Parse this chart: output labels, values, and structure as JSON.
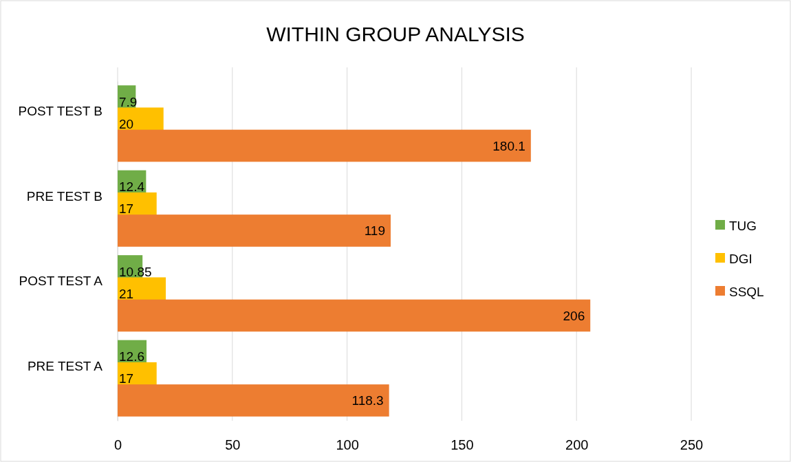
{
  "chart_data": {
    "type": "bar",
    "orientation": "horizontal",
    "title": "WITHIN GROUP ANALYSIS",
    "categories": [
      "POST TEST B",
      "PRE TEST B",
      "POST TEST A",
      "PRE TEST A"
    ],
    "series": [
      {
        "name": "TUG",
        "color": "#70ad47",
        "values": [
          7.9,
          12.4,
          10.85,
          12.6
        ]
      },
      {
        "name": "DGI",
        "color": "#ffc000",
        "values": [
          20,
          17,
          21,
          17
        ]
      },
      {
        "name": "SSQL",
        "color": "#ed7d31",
        "values": [
          180.1,
          119,
          206,
          118.3
        ]
      }
    ],
    "xlim": [
      0,
      250
    ],
    "xticks": [
      0,
      50,
      100,
      150,
      200,
      250
    ],
    "grid": "x",
    "legend": "right",
    "data_labels": true
  }
}
